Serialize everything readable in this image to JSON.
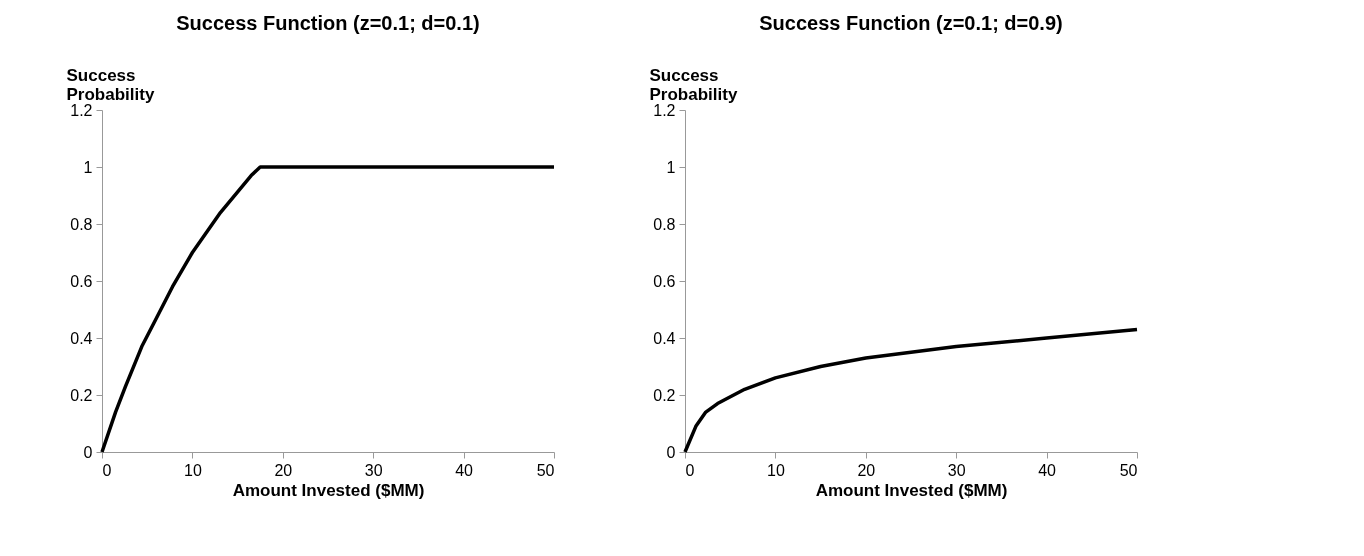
{
  "chart_data": [
    {
      "type": "line",
      "title": "Success Function (z=0.1; d=0.1)",
      "xlabel": "Amount Invested ($MM)",
      "ylabel": "Success Probability",
      "x": [
        0,
        1.5,
        2.6,
        4.4,
        5.7,
        7.8,
        10,
        13.1,
        16.5,
        17.5,
        50
      ],
      "series": [
        {
          "color": "#000000",
          "values": [
            0,
            0.14,
            0.23,
            0.37,
            0.45,
            0.58,
            0.7,
            0.84,
            0.97,
            1,
            1
          ]
        }
      ],
      "xlim": [
        0,
        50
      ],
      "xticks": [
        0,
        10,
        20,
        30,
        40,
        50
      ],
      "ylim": [
        0,
        1.2
      ],
      "yticks": [
        0,
        0.2,
        0.4,
        0.6,
        0.8,
        1,
        1.2
      ],
      "grid": false
    },
    {
      "type": "line",
      "title": "Success Function (z=0.1; d=0.9)",
      "xlabel": "Amount Invested ($MM)",
      "ylabel": "Success Probability",
      "x": [
        0,
        1.2,
        2.3,
        3.6,
        6.6,
        10,
        15,
        20,
        30,
        40,
        50
      ],
      "series": [
        {
          "color": "#000000",
          "values": [
            0,
            0.09,
            0.14,
            0.17,
            0.22,
            0.26,
            0.3,
            0.33,
            0.37,
            0.4,
            0.43
          ]
        }
      ],
      "xlim": [
        0,
        50
      ],
      "xticks": [
        0,
        10,
        20,
        30,
        40,
        50
      ],
      "ylim": [
        0,
        1.2
      ],
      "yticks": [
        0,
        0.2,
        0.4,
        0.6,
        0.8,
        1,
        1.2
      ],
      "grid": false
    }
  ]
}
